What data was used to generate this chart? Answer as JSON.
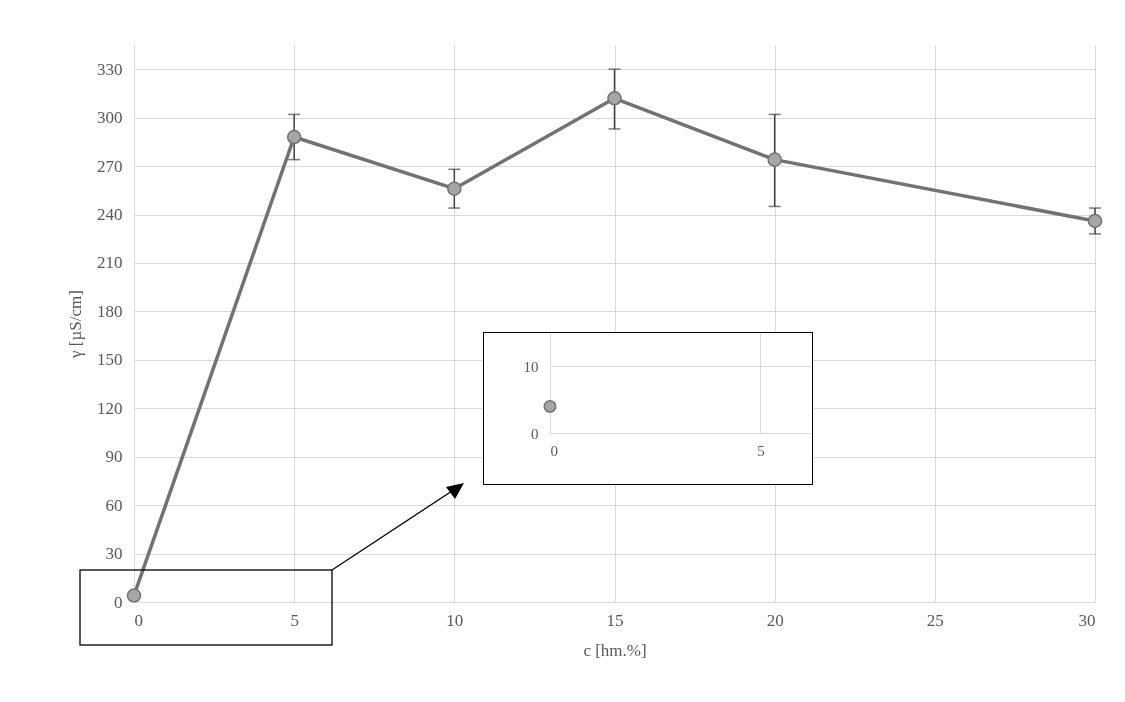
{
  "chart_data": [
    {
      "type": "line",
      "xlabel": "c [hm.%]",
      "ylabel": "γ [µS/cm]",
      "x": [
        0,
        5,
        10,
        15,
        20,
        30
      ],
      "series": [
        {
          "color": "#767171",
          "values": [
            4,
            288,
            256,
            312,
            274,
            236
          ],
          "errors": [
            null,
            [
              274,
              302
            ],
            [
              244,
              268
            ],
            [
              293,
              330
            ],
            [
              245,
              302
            ],
            [
              228,
              244
            ]
          ]
        }
      ],
      "xlim": [
        0,
        30
      ],
      "xticks": [
        0,
        5,
        10,
        15,
        20,
        25,
        30
      ],
      "ylim": [
        0,
        345
      ],
      "yticks": [
        0,
        30,
        60,
        90,
        120,
        150,
        180,
        210,
        240,
        270,
        300,
        330
      ],
      "grid": true,
      "marker": "circle",
      "line_style": "solid"
    },
    {
      "type": "line",
      "x": [
        0
      ],
      "series": [
        {
          "color": "#767171",
          "values": [
            4
          ]
        }
      ],
      "xlim": [
        0,
        6.2
      ],
      "xticks": [
        0,
        5
      ],
      "ylim": [
        0,
        15
      ],
      "yticks": [
        0,
        10
      ],
      "grid": true,
      "marker": "circle",
      "line_style": "solid"
    }
  ]
}
